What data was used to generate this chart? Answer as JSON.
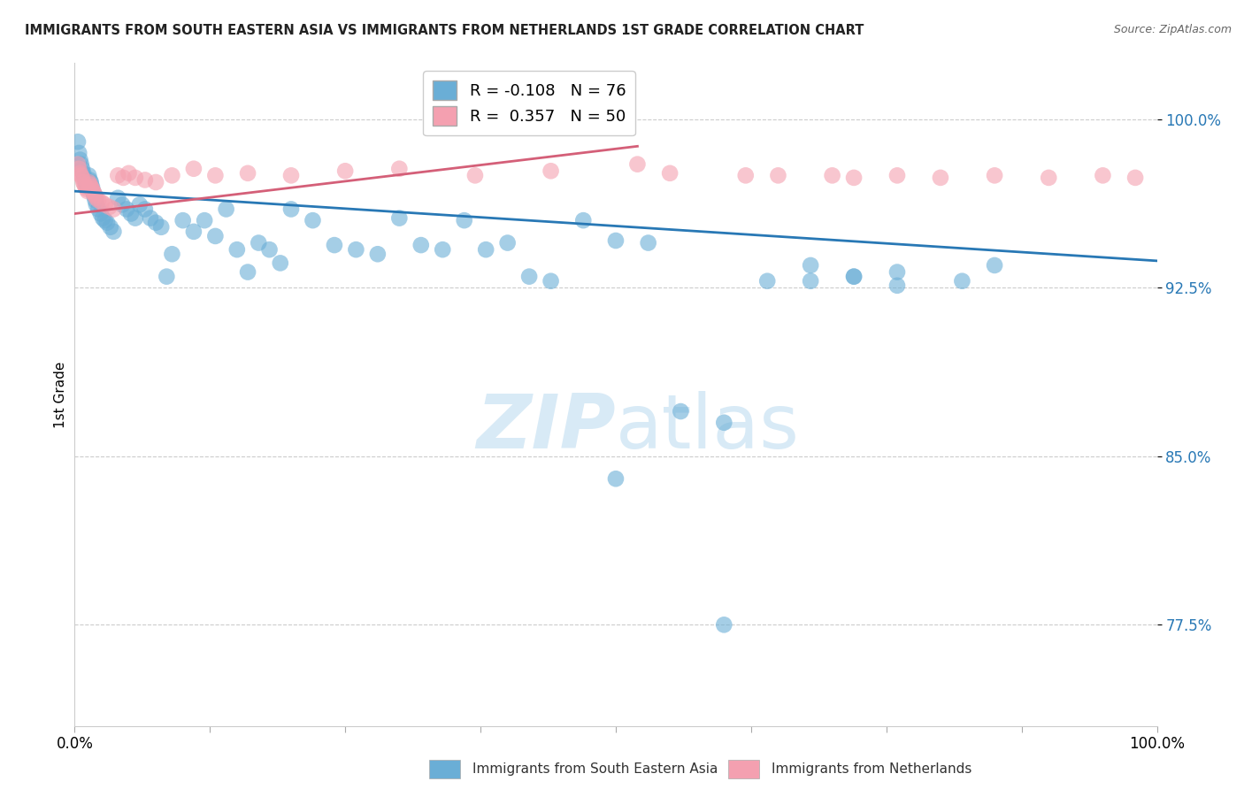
{
  "title": "IMMIGRANTS FROM SOUTH EASTERN ASIA VS IMMIGRANTS FROM NETHERLANDS 1ST GRADE CORRELATION CHART",
  "source": "Source: ZipAtlas.com",
  "ylabel": "1st Grade",
  "xlim": [
    0.0,
    1.0
  ],
  "ylim": [
    0.73,
    1.025
  ],
  "yticks": [
    0.775,
    0.85,
    0.925,
    1.0
  ],
  "ytick_labels": [
    "77.5%",
    "85.0%",
    "92.5%",
    "100.0%"
  ],
  "blue_series_label": "Immigrants from South Eastern Asia",
  "pink_series_label": "Immigrants from Netherlands",
  "blue_R": -0.108,
  "blue_N": 76,
  "pink_R": 0.357,
  "pink_N": 50,
  "blue_color": "#6aaed6",
  "pink_color": "#f4a0b0",
  "blue_line_color": "#2878b5",
  "pink_line_color": "#d45f78",
  "tick_color": "#2878b5",
  "background_color": "#ffffff",
  "grid_color": "#cccccc",
  "watermark_color": "#d8eaf6",
  "blue_line_x0": 0.0,
  "blue_line_x1": 1.0,
  "blue_line_y0": 0.968,
  "blue_line_y1": 0.937,
  "pink_line_x0": 0.0,
  "pink_line_x1": 0.52,
  "pink_line_y0": 0.958,
  "pink_line_y1": 0.988,
  "blue_x": [
    0.003,
    0.004,
    0.005,
    0.006,
    0.007,
    0.008,
    0.009,
    0.01,
    0.011,
    0.012,
    0.013,
    0.014,
    0.015,
    0.016,
    0.017,
    0.018,
    0.019,
    0.02,
    0.022,
    0.024,
    0.026,
    0.028,
    0.03,
    0.033,
    0.036,
    0.04,
    0.044,
    0.048,
    0.052,
    0.056,
    0.06,
    0.065,
    0.07,
    0.075,
    0.08,
    0.085,
    0.09,
    0.1,
    0.11,
    0.12,
    0.13,
    0.14,
    0.15,
    0.16,
    0.17,
    0.18,
    0.19,
    0.2,
    0.22,
    0.24,
    0.26,
    0.28,
    0.3,
    0.32,
    0.34,
    0.36,
    0.38,
    0.4,
    0.42,
    0.44,
    0.47,
    0.5,
    0.53,
    0.56,
    0.6,
    0.64,
    0.68,
    0.72,
    0.76,
    0.82,
    0.68,
    0.72,
    0.76,
    0.85,
    0.5,
    0.6
  ],
  "blue_y": [
    0.99,
    0.985,
    0.982,
    0.98,
    0.978,
    0.976,
    0.974,
    0.972,
    0.971,
    0.97,
    0.975,
    0.973,
    0.972,
    0.97,
    0.968,
    0.966,
    0.964,
    0.962,
    0.96,
    0.958,
    0.956,
    0.955,
    0.954,
    0.952,
    0.95,
    0.965,
    0.962,
    0.96,
    0.958,
    0.956,
    0.962,
    0.96,
    0.956,
    0.954,
    0.952,
    0.93,
    0.94,
    0.955,
    0.95,
    0.955,
    0.948,
    0.96,
    0.942,
    0.932,
    0.945,
    0.942,
    0.936,
    0.96,
    0.955,
    0.944,
    0.942,
    0.94,
    0.956,
    0.944,
    0.942,
    0.955,
    0.942,
    0.945,
    0.93,
    0.928,
    0.955,
    0.946,
    0.945,
    0.87,
    0.865,
    0.928,
    0.928,
    0.93,
    0.926,
    0.928,
    0.935,
    0.93,
    0.932,
    0.935,
    0.84,
    0.775
  ],
  "pink_x": [
    0.003,
    0.004,
    0.005,
    0.006,
    0.007,
    0.008,
    0.009,
    0.01,
    0.011,
    0.012,
    0.013,
    0.014,
    0.015,
    0.016,
    0.017,
    0.018,
    0.019,
    0.02,
    0.022,
    0.025,
    0.028,
    0.032,
    0.036,
    0.04,
    0.045,
    0.05,
    0.056,
    0.065,
    0.075,
    0.09,
    0.11,
    0.13,
    0.16,
    0.2,
    0.25,
    0.3,
    0.37,
    0.44,
    0.52,
    0.65,
    0.72,
    0.76,
    0.8,
    0.85,
    0.9,
    0.95,
    0.98,
    0.55,
    0.62,
    0.7
  ],
  "pink_y": [
    0.98,
    0.978,
    0.976,
    0.975,
    0.974,
    0.972,
    0.971,
    0.97,
    0.969,
    0.968,
    0.972,
    0.971,
    0.97,
    0.969,
    0.968,
    0.967,
    0.966,
    0.965,
    0.964,
    0.963,
    0.962,
    0.961,
    0.96,
    0.975,
    0.974,
    0.976,
    0.974,
    0.973,
    0.972,
    0.975,
    0.978,
    0.975,
    0.976,
    0.975,
    0.977,
    0.978,
    0.975,
    0.977,
    0.98,
    0.975,
    0.974,
    0.975,
    0.974,
    0.975,
    0.974,
    0.975,
    0.974,
    0.976,
    0.975,
    0.975
  ]
}
